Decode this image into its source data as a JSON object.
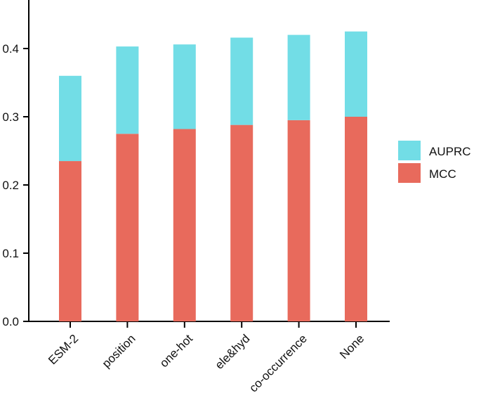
{
  "chart_data": {
    "type": "bar",
    "stacked": true,
    "categories": [
      "ESM-2",
      "position",
      "one-hot",
      "ele&hyd",
      "co-occurrence",
      "None"
    ],
    "series": [
      {
        "name": "MCC",
        "values": [
          0.235,
          0.275,
          0.282,
          0.288,
          0.295,
          0.3
        ],
        "color": "#E86A5C"
      },
      {
        "name": "AUPRC",
        "values": [
          0.125,
          0.128,
          0.124,
          0.128,
          0.125,
          0.125
        ],
        "color": "#72DDE6"
      }
    ],
    "totals": [
      0.36,
      0.403,
      0.406,
      0.416,
      0.42,
      0.425
    ],
    "ylim": [
      0,
      0.45
    ],
    "yticks": [
      "0.0",
      "0.1",
      "0.2",
      "0.3",
      "0.4"
    ],
    "ytick_values": [
      0.0,
      0.1,
      0.2,
      0.3,
      0.4
    ],
    "title": "",
    "xlabel": "",
    "ylabel": "",
    "grid": false,
    "legend": {
      "position": "right",
      "entries": [
        {
          "label": "AUPRC",
          "color": "#72DDE6"
        },
        {
          "label": "MCC",
          "color": "#E86A5C"
        }
      ]
    }
  }
}
